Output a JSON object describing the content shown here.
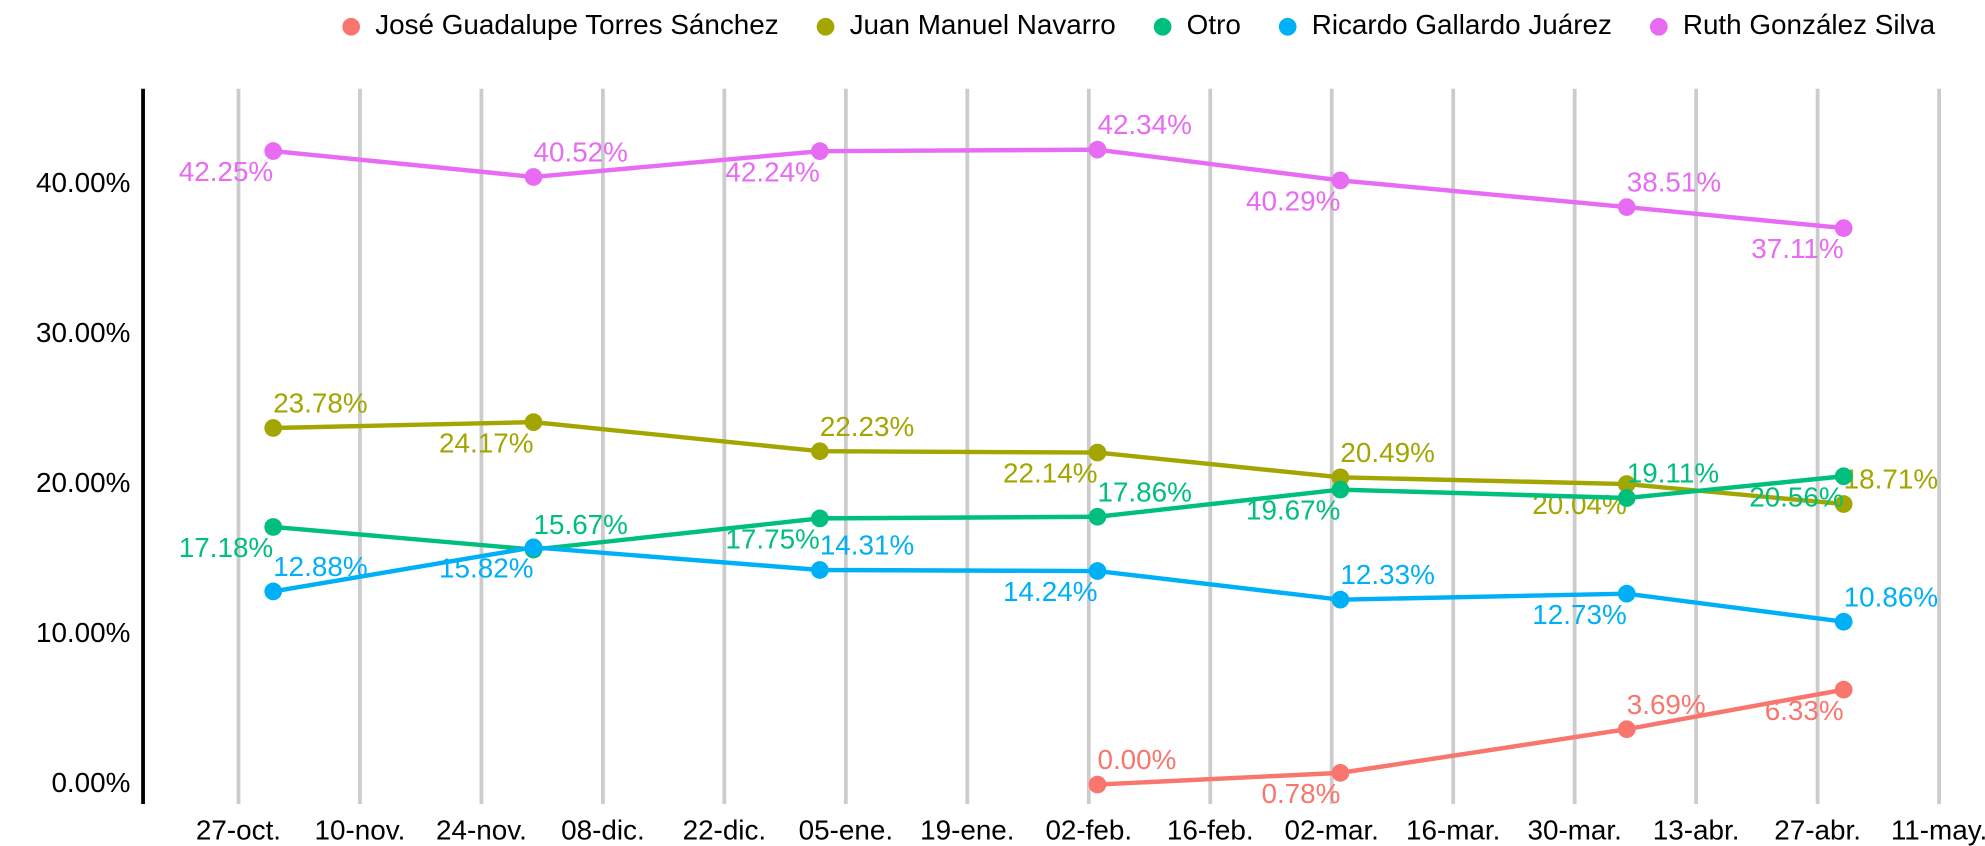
{
  "chart_data": {
    "type": "line",
    "x": [
      "10-31",
      "11-30",
      "01-02",
      "02-03",
      "03-03",
      "04-05",
      "04-30"
    ],
    "xlim": [
      "10-16",
      "05-16"
    ],
    "xticks": [
      {
        "value": "10-27",
        "label": "27-oct."
      },
      {
        "value": "11-10",
        "label": "10-nov."
      },
      {
        "value": "11-24",
        "label": "24-nov."
      },
      {
        "value": "12-08",
        "label": "08-dic."
      },
      {
        "value": "12-22",
        "label": "22-dic."
      },
      {
        "value": "01-05",
        "label": "05-ene."
      },
      {
        "value": "01-19",
        "label": "19-ene."
      },
      {
        "value": "02-02",
        "label": "02-feb."
      },
      {
        "value": "02-16",
        "label": "16-feb."
      },
      {
        "value": "03-02",
        "label": "02-mar."
      },
      {
        "value": "03-16",
        "label": "16-mar."
      },
      {
        "value": "03-30",
        "label": "30-mar."
      },
      {
        "value": "04-13",
        "label": "13-abr."
      },
      {
        "value": "04-27",
        "label": "27-abr."
      },
      {
        "value": "05-11",
        "label": "11-may."
      }
    ],
    "ylim": [
      -1.3,
      46.4
    ],
    "yticks": [
      {
        "value": 0,
        "label": "0.00%"
      },
      {
        "value": 10,
        "label": "10.00%"
      },
      {
        "value": 20,
        "label": "20.00%"
      },
      {
        "value": 30,
        "label": "30.00%"
      },
      {
        "value": 40,
        "label": "40.00%"
      }
    ],
    "grid": true,
    "legend": "top",
    "series": [
      {
        "name": "José Guadalupe Torres Sánchez",
        "color": "#F8766D",
        "values": [
          null,
          null,
          null,
          0.0,
          0.78,
          3.69,
          6.33
        ],
        "value_labels": [
          null,
          null,
          null,
          "0.00%",
          "0.78%",
          "3.69%",
          "6.33%"
        ]
      },
      {
        "name": "Juan Manuel Navarro",
        "color": "#A3A500",
        "values": [
          23.78,
          24.17,
          22.23,
          22.14,
          20.49,
          20.04,
          18.71
        ],
        "value_labels": [
          "23.78%",
          "24.17%",
          "22.23%",
          "22.14%",
          "20.49%",
          "20.04%",
          "18.71%"
        ]
      },
      {
        "name": "Otro",
        "color": "#00BF7D",
        "values": [
          17.18,
          15.67,
          17.75,
          17.86,
          19.67,
          19.11,
          20.56
        ],
        "value_labels": [
          "17.18%",
          "15.67%",
          "17.75%",
          "17.86%",
          "19.67%",
          "19.11%",
          "20.56%"
        ]
      },
      {
        "name": "Ricardo Gallardo Juárez",
        "color": "#00B0F6",
        "values": [
          12.88,
          15.82,
          14.31,
          14.24,
          12.33,
          12.73,
          10.86
        ],
        "value_labels": [
          "12.88%",
          "15.82%",
          "14.31%",
          "14.24%",
          "12.33%",
          "12.73%",
          "10.86%"
        ]
      },
      {
        "name": "Ruth González Silva",
        "color": "#E76BF3",
        "values": [
          42.25,
          40.52,
          42.24,
          42.34,
          40.29,
          38.51,
          37.11
        ],
        "value_labels": [
          "42.25%",
          "40.52%",
          "42.24%",
          "42.34%",
          "40.29%",
          "38.51%",
          "37.11%"
        ]
      }
    ]
  }
}
